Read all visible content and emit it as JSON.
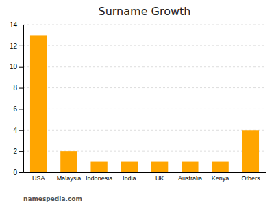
{
  "chart_data": {
    "type": "bar",
    "title": "Surname Growth",
    "categories": [
      "USA",
      "Malaysia",
      "Indonesia",
      "India",
      "UK",
      "Australia",
      "Kenya",
      "Others"
    ],
    "values": [
      13,
      2,
      1,
      1,
      1,
      1,
      1,
      4
    ],
    "color": "#FFA500",
    "ylim": [
      0,
      14
    ],
    "yticks": [
      0,
      2,
      4,
      6,
      8,
      10,
      12,
      14
    ],
    "grid": true,
    "annotations": [
      "namespedia.com"
    ]
  }
}
